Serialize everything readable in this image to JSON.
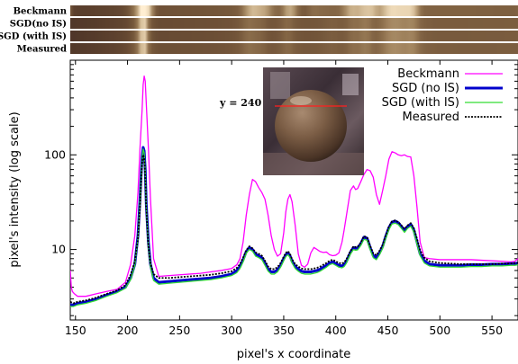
{
  "chart_data": {
    "type": "line",
    "xlabel": "pixel's x coordinate",
    "ylabel": "pixel's intensity (log scale)",
    "xlim": [
      145,
      575
    ],
    "ylim": [
      1.8,
      1000
    ],
    "yscale": "log",
    "grid": false,
    "legend_placement": "top-right",
    "xticks": [
      150,
      200,
      250,
      300,
      350,
      400,
      450,
      500,
      550
    ],
    "yticks": [
      10,
      100
    ],
    "strip_labels": [
      "Beckmann",
      "SGD(no IS)",
      "SGD (with IS)",
      "Measured"
    ],
    "annotation": "y = 240",
    "inset_image": "rendered-sphere",
    "series": [
      {
        "name": "Beckmann",
        "color": "#ff00ff",
        "width": 1.3,
        "dash": "",
        "x": [
          145,
          146,
          147,
          149,
          152,
          160,
          170,
          180,
          190,
          198,
          203,
          207,
          210,
          212,
          214,
          215,
          216,
          217,
          218,
          220,
          222,
          225,
          230,
          240,
          250,
          260,
          270,
          280,
          290,
          300,
          305,
          308,
          311,
          314,
          317,
          320,
          323,
          326,
          329,
          332,
          335,
          338,
          341,
          344,
          347,
          350,
          352,
          354,
          356,
          358,
          361,
          364,
          367,
          370,
          373,
          376,
          379,
          382,
          385,
          388,
          391,
          394,
          397,
          400,
          403,
          406,
          408,
          410,
          414,
          417,
          419,
          421,
          424,
          427,
          430,
          433,
          436,
          439,
          442,
          445,
          448,
          451,
          454,
          457,
          460,
          463,
          466,
          469,
          472,
          475,
          478,
          481,
          485,
          490,
          500,
          510,
          520,
          530,
          540,
          550,
          560,
          568,
          572,
          575
        ],
        "y": [
          6,
          4,
          3.6,
          3.4,
          3.2,
          3.2,
          3.4,
          3.6,
          3.8,
          4.5,
          7,
          14,
          40,
          120,
          300,
          550,
          680,
          600,
          350,
          120,
          35,
          8,
          5.2,
          5.3,
          5.4,
          5.5,
          5.6,
          5.8,
          6,
          6.3,
          6.9,
          8,
          12,
          23,
          38,
          55,
          52,
          45,
          40,
          34,
          23,
          14,
          10,
          8.5,
          9,
          15,
          25,
          34,
          38,
          32,
          18,
          9,
          6.8,
          6.5,
          7,
          9.2,
          10.5,
          10,
          9.5,
          9.3,
          9.4,
          8.8,
          8.6,
          8.7,
          9.2,
          12,
          16,
          22,
          42,
          47,
          43,
          44,
          52,
          62,
          70,
          68,
          58,
          38,
          30,
          42,
          60,
          90,
          108,
          105,
          100,
          98,
          100,
          96,
          95,
          60,
          28,
          12,
          8.2,
          8,
          7.8,
          7.8,
          7.8,
          7.8,
          7.7,
          7.6,
          7.5,
          7.4,
          7.5,
          8
        ]
      },
      {
        "name": "SGD (no IS)",
        "color": "#0000cc",
        "width": 3,
        "dash": "",
        "x": [
          145,
          148,
          152,
          160,
          170,
          180,
          190,
          198,
          203,
          207,
          210,
          212,
          213,
          214,
          215,
          216,
          217,
          218,
          220,
          222,
          225,
          230,
          240,
          250,
          260,
          270,
          280,
          290,
          300,
          305,
          308,
          311,
          314,
          317,
          320,
          323,
          326,
          329,
          332,
          335,
          338,
          341,
          344,
          347,
          350,
          352,
          354,
          356,
          358,
          361,
          364,
          367,
          370,
          373,
          376,
          379,
          382,
          385,
          388,
          391,
          394,
          397,
          400,
          403,
          406,
          408,
          410,
          414,
          417,
          419,
          421,
          424,
          427,
          430,
          433,
          436,
          439,
          442,
          445,
          448,
          451,
          454,
          457,
          460,
          463,
          466,
          469,
          472,
          475,
          478,
          481,
          485,
          490,
          500,
          510,
          520,
          530,
          540,
          550,
          560,
          568,
          572,
          575
        ],
        "y": [
          2.6,
          2.6,
          2.7,
          2.8,
          3,
          3.3,
          3.6,
          4,
          5,
          7,
          14,
          35,
          60,
          95,
          120,
          110,
          70,
          30,
          12,
          7,
          5,
          4.5,
          4.6,
          4.7,
          4.8,
          4.9,
          5,
          5.2,
          5.5,
          6,
          6.6,
          7.8,
          9.5,
          10.5,
          10,
          8.9,
          8.6,
          8.2,
          7.2,
          6.2,
          5.8,
          5.8,
          6.1,
          6.8,
          8,
          8.8,
          9.2,
          8.6,
          7.5,
          6.6,
          6.2,
          5.9,
          5.8,
          5.8,
          5.8,
          5.9,
          6,
          6.2,
          6.5,
          6.8,
          7.2,
          7.4,
          7.1,
          6.8,
          6.7,
          6.9,
          7.4,
          9.3,
          10.5,
          10.3,
          10.4,
          11.5,
          13.5,
          13.2,
          10.5,
          8.6,
          8.2,
          9.2,
          10.8,
          13.8,
          17,
          19.5,
          20,
          19.2,
          17.5,
          16,
          17.5,
          18.5,
          16,
          12,
          9,
          7.6,
          7,
          6.8,
          6.8,
          6.8,
          6.9,
          6.9,
          7,
          7,
          7.1,
          7.1,
          7.2
        ]
      },
      {
        "name": "SGD (with IS)",
        "color": "#33dd33",
        "width": 1.3,
        "dash": "",
        "x": [
          145,
          148,
          152,
          160,
          170,
          180,
          190,
          198,
          203,
          207,
          210,
          212,
          213,
          214,
          215,
          216,
          217,
          218,
          220,
          222,
          225,
          230,
          240,
          250,
          260,
          270,
          280,
          290,
          300,
          305,
          308,
          311,
          314,
          317,
          320,
          323,
          326,
          329,
          332,
          335,
          338,
          341,
          344,
          347,
          350,
          352,
          354,
          356,
          358,
          361,
          364,
          367,
          370,
          373,
          376,
          379,
          382,
          385,
          388,
          391,
          394,
          397,
          400,
          403,
          406,
          408,
          410,
          414,
          417,
          419,
          421,
          424,
          427,
          430,
          433,
          436,
          439,
          442,
          445,
          448,
          451,
          454,
          457,
          460,
          463,
          466,
          469,
          472,
          475,
          478,
          481,
          485,
          490,
          500,
          510,
          520,
          530,
          540,
          550,
          560,
          568,
          572,
          575
        ],
        "y": [
          2.5,
          2.5,
          2.6,
          2.7,
          2.9,
          3.2,
          3.5,
          3.9,
          4.8,
          6.8,
          13,
          33,
          56,
          90,
          115,
          105,
          66,
          28,
          11,
          6.6,
          4.7,
          4.3,
          4.4,
          4.5,
          4.6,
          4.7,
          4.8,
          5,
          5.3,
          5.7,
          6.3,
          7.4,
          9.1,
          10,
          9.6,
          8.5,
          8.2,
          7.8,
          6.8,
          5.9,
          5.5,
          5.5,
          5.8,
          6.5,
          7.6,
          8.4,
          8.8,
          8.2,
          7.2,
          6.3,
          5.9,
          5.6,
          5.5,
          5.5,
          5.5,
          5.6,
          5.7,
          5.9,
          6.2,
          6.5,
          6.9,
          7.1,
          6.8,
          6.5,
          6.4,
          6.6,
          7.1,
          8.9,
          10,
          9.8,
          9.9,
          11,
          12.8,
          12.5,
          10,
          8.2,
          7.8,
          8.8,
          10.3,
          13.1,
          16.2,
          18.6,
          19,
          18.3,
          16.7,
          15.2,
          16.7,
          17.6,
          15.2,
          11.4,
          8.6,
          7.2,
          6.7,
          6.5,
          6.5,
          6.5,
          6.6,
          6.6,
          6.7,
          6.7,
          6.8,
          6.8,
          6.9
        ]
      },
      {
        "name": "Measured",
        "color": "#000000",
        "width": 1.8,
        "dash": "2,1.5",
        "x": [
          145,
          148,
          152,
          160,
          170,
          180,
          190,
          198,
          203,
          207,
          210,
          212,
          213,
          214,
          215,
          216,
          217,
          218,
          220,
          222,
          225,
          230,
          240,
          250,
          260,
          270,
          280,
          290,
          300,
          305,
          308,
          311,
          314,
          317,
          320,
          323,
          326,
          329,
          332,
          335,
          338,
          341,
          344,
          347,
          350,
          352,
          354,
          356,
          358,
          361,
          364,
          367,
          370,
          373,
          376,
          379,
          382,
          385,
          388,
          391,
          394,
          397,
          400,
          403,
          406,
          408,
          410,
          414,
          417,
          419,
          421,
          424,
          427,
          430,
          433,
          436,
          439,
          442,
          445,
          448,
          451,
          454,
          457,
          460,
          463,
          466,
          469,
          472,
          475,
          478,
          481,
          485,
          490,
          500,
          510,
          520,
          530,
          540,
          550,
          560,
          568,
          572,
          575
        ],
        "y": [
          2.8,
          2.7,
          2.8,
          2.9,
          3.1,
          3.4,
          3.7,
          4.2,
          5.4,
          7.5,
          13,
          28,
          50,
          80,
          100,
          92,
          60,
          27,
          11,
          7.2,
          5.5,
          5,
          5,
          5.1,
          5.2,
          5.3,
          5.4,
          5.6,
          5.9,
          6.4,
          7,
          8.2,
          9.8,
          10.8,
          10.3,
          9.3,
          9,
          8.6,
          7.6,
          6.6,
          6.2,
          6.2,
          6.5,
          7.2,
          8.4,
          9.2,
          9.6,
          9,
          7.9,
          7,
          6.6,
          6.3,
          6.2,
          6.2,
          6.2,
          6.3,
          6.4,
          6.6,
          6.9,
          7.2,
          7.6,
          7.8,
          7.5,
          7.2,
          7.1,
          7.3,
          7.8,
          9.6,
          10.8,
          10.6,
          10.7,
          11.8,
          13.8,
          13.5,
          11,
          9.1,
          8.7,
          9.7,
          11.2,
          14.2,
          17.4,
          19.8,
          20.3,
          19.5,
          18,
          16.5,
          18,
          19,
          16.8,
          13,
          9.8,
          8.2,
          7.5,
          7.2,
          7.1,
          7,
          7,
          7,
          7,
          7.1,
          7.1,
          7.2,
          7.2
        ]
      }
    ]
  }
}
